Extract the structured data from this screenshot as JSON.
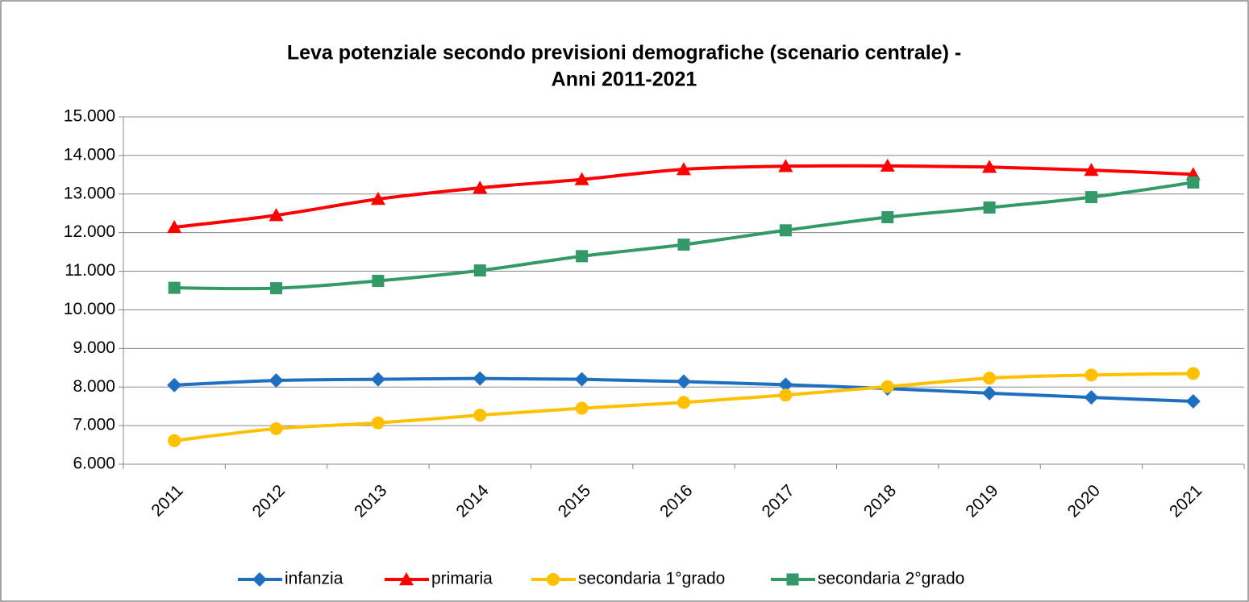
{
  "chart_data": {
    "type": "line",
    "title": [
      "Leva potenziale secondo previsioni demografiche (scenario centrale) -",
      "Anni 2011-2021"
    ],
    "categories": [
      "2011",
      "2012",
      "2013",
      "2014",
      "2015",
      "2016",
      "2017",
      "2018",
      "2019",
      "2020",
      "2021"
    ],
    "series": [
      {
        "name": "infanzia",
        "color": "#1f6fc0",
        "marker": "diamond",
        "values": [
          8050,
          8170,
          8200,
          8220,
          8200,
          8140,
          8060,
          7960,
          7840,
          7730,
          7630
        ]
      },
      {
        "name": "primaria",
        "color": "#ff0000",
        "marker": "triangle",
        "values": [
          12140,
          12450,
          12870,
          13160,
          13380,
          13640,
          13720,
          13730,
          13700,
          13620,
          13510
        ]
      },
      {
        "name": "secondaria 1°grado",
        "color": "#ffc000",
        "marker": "circle",
        "values": [
          6610,
          6920,
          7070,
          7270,
          7450,
          7600,
          7790,
          8010,
          8230,
          8310,
          8350
        ]
      },
      {
        "name": "secondaria 2°grado",
        "color": "#339966",
        "marker": "square",
        "values": [
          10570,
          10560,
          10750,
          11020,
          11390,
          11690,
          12060,
          12400,
          12650,
          12920,
          13300
        ]
      }
    ],
    "ylim": [
      6000,
      15000
    ],
    "yticks": [
      {
        "value": 6000,
        "label": "6.000"
      },
      {
        "value": 7000,
        "label": "7.000"
      },
      {
        "value": 8000,
        "label": "8.000"
      },
      {
        "value": 9000,
        "label": "9.000"
      },
      {
        "value": 10000,
        "label": "10.000"
      },
      {
        "value": 11000,
        "label": "11.000"
      },
      {
        "value": 12000,
        "label": "12.000"
      },
      {
        "value": 13000,
        "label": "13.000"
      },
      {
        "value": 14000,
        "label": "14.000"
      },
      {
        "value": 15000,
        "label": "15.000"
      }
    ],
    "grid": true,
    "legend": "bottom"
  }
}
